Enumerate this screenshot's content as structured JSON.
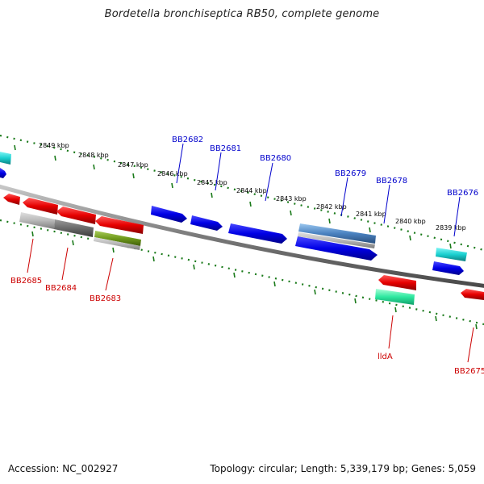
{
  "title": "Bordetella bronchiseptica RB50, complete genome",
  "footer": {
    "accession": "Accession: NC_002927",
    "stats": "Topology: circular; Length: 5,339,179 bp; Genes: 5,059"
  },
  "colors": {
    "forward": "#0000e0",
    "reverse": "#e00000",
    "ruler": "#1a7a1a",
    "backbone": "#777777"
  },
  "ruler": [
    {
      "label": "2849 kbp"
    },
    {
      "label": "2848 kbp"
    },
    {
      "label": "2847 kbp"
    },
    {
      "label": "2846 kbp"
    },
    {
      "label": "2845 kbp"
    },
    {
      "label": "2844 kbp"
    },
    {
      "label": "2843 kbp"
    },
    {
      "label": "2842 kbp"
    },
    {
      "label": "2841 kbp"
    },
    {
      "label": "2840 kbp"
    },
    {
      "label": "2839 kbp"
    }
  ],
  "genes": {
    "forward": [
      {
        "label": "BB2682",
        "color": "#0000e0"
      },
      {
        "label": "BB2681",
        "color": "#0000e0"
      },
      {
        "label": "BB2680",
        "color": "#0000e0"
      },
      {
        "label": "BB2679",
        "color": "#0000e0"
      },
      {
        "label": "BB2678",
        "color": "#0000e0"
      },
      {
        "label": "BB2676",
        "color": "#0000e0"
      }
    ],
    "reverse": [
      {
        "label": "BB2685",
        "color": "#e00000"
      },
      {
        "label": "BB2684",
        "color": "#e00000"
      },
      {
        "label": "BB2683",
        "color": "#e00000"
      },
      {
        "label": "lldA",
        "color": "#e00000"
      },
      {
        "label": "BB2675",
        "color": "#e00000"
      }
    ]
  }
}
